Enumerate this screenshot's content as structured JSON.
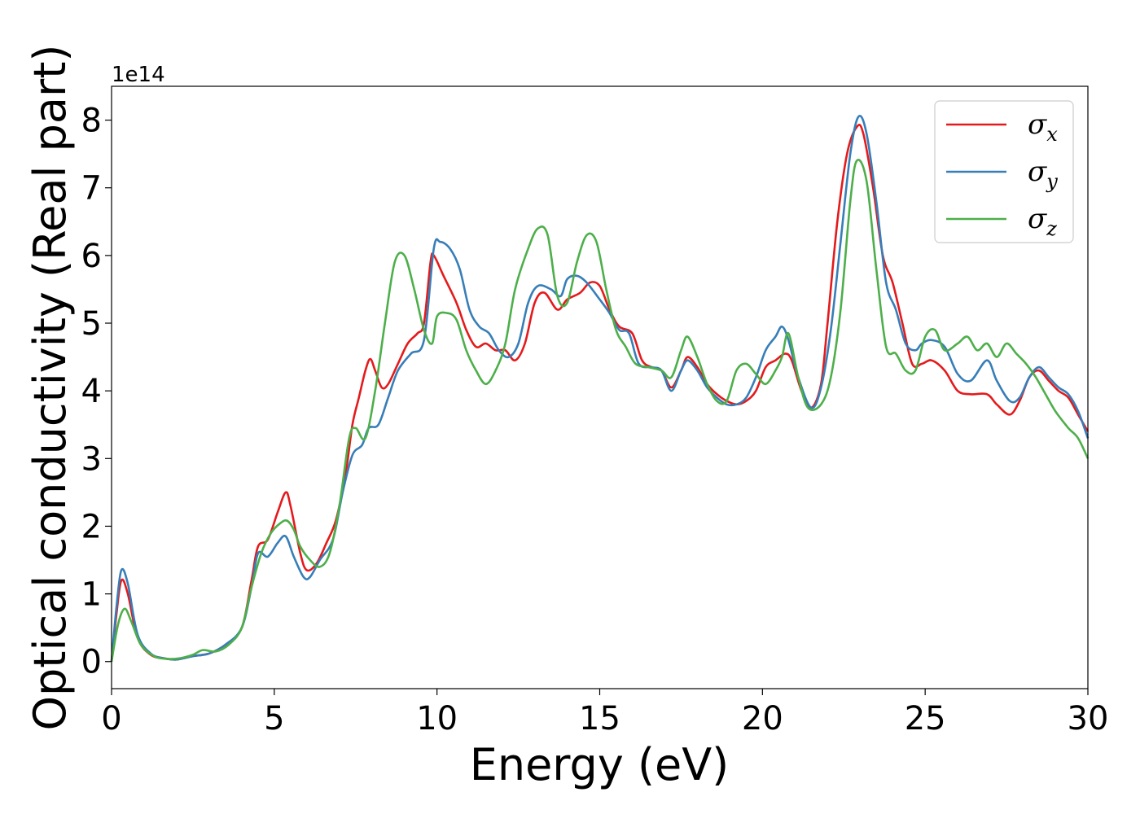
{
  "chart_data": {
    "type": "line",
    "xlabel": "Energy (eV)",
    "ylabel": "Optical conductivity (Real part)",
    "y_offset_label": "1e14",
    "xlim": [
      0,
      30
    ],
    "ylim": [
      -0.4,
      8.5
    ],
    "x_ticks": [
      0,
      5,
      10,
      15,
      20,
      25,
      30
    ],
    "y_ticks": [
      0,
      1,
      2,
      3,
      4,
      5,
      6,
      7,
      8
    ],
    "grid": false,
    "legend_position": "top-right",
    "series": [
      {
        "name": "σx",
        "legend_base": "σ",
        "legend_sub": "x",
        "color": "#e41a1c",
        "points": [
          [
            0,
            0
          ],
          [
            0.15,
            0.7
          ],
          [
            0.3,
            1.2
          ],
          [
            0.5,
            1.0
          ],
          [
            0.8,
            0.35
          ],
          [
            1.2,
            0.1
          ],
          [
            1.6,
            0.05
          ],
          [
            2.0,
            0.03
          ],
          [
            2.5,
            0.08
          ],
          [
            3.0,
            0.12
          ],
          [
            3.5,
            0.25
          ],
          [
            4.0,
            0.5
          ],
          [
            4.3,
            1.2
          ],
          [
            4.5,
            1.7
          ],
          [
            4.8,
            1.8
          ],
          [
            5.1,
            2.2
          ],
          [
            5.35,
            2.5
          ],
          [
            5.5,
            2.3
          ],
          [
            5.8,
            1.6
          ],
          [
            6.0,
            1.35
          ],
          [
            6.3,
            1.45
          ],
          [
            6.6,
            1.75
          ],
          [
            6.9,
            2.1
          ],
          [
            7.2,
            2.8
          ],
          [
            7.4,
            3.5
          ],
          [
            7.6,
            3.9
          ],
          [
            7.8,
            4.3
          ],
          [
            7.95,
            4.47
          ],
          [
            8.1,
            4.3
          ],
          [
            8.3,
            4.05
          ],
          [
            8.5,
            4.1
          ],
          [
            8.8,
            4.4
          ],
          [
            9.1,
            4.7
          ],
          [
            9.4,
            4.85
          ],
          [
            9.6,
            5.0
          ],
          [
            9.8,
            5.9
          ],
          [
            9.9,
            6.0
          ],
          [
            10.2,
            5.7
          ],
          [
            10.6,
            5.3
          ],
          [
            10.9,
            4.9
          ],
          [
            11.2,
            4.65
          ],
          [
            11.5,
            4.7
          ],
          [
            11.8,
            4.6
          ],
          [
            12.1,
            4.6
          ],
          [
            12.4,
            4.45
          ],
          [
            12.7,
            4.7
          ],
          [
            13.0,
            5.3
          ],
          [
            13.3,
            5.45
          ],
          [
            13.7,
            5.2
          ],
          [
            14.0,
            5.35
          ],
          [
            14.4,
            5.45
          ],
          [
            14.7,
            5.6
          ],
          [
            15.0,
            5.55
          ],
          [
            15.3,
            5.2
          ],
          [
            15.6,
            4.95
          ],
          [
            16.0,
            4.85
          ],
          [
            16.3,
            4.45
          ],
          [
            16.6,
            4.35
          ],
          [
            16.9,
            4.3
          ],
          [
            17.2,
            4.05
          ],
          [
            17.5,
            4.3
          ],
          [
            17.7,
            4.5
          ],
          [
            18.0,
            4.35
          ],
          [
            18.3,
            4.1
          ],
          [
            18.6,
            3.95
          ],
          [
            18.9,
            3.85
          ],
          [
            19.2,
            3.8
          ],
          [
            19.5,
            3.85
          ],
          [
            19.8,
            4.0
          ],
          [
            20.1,
            4.35
          ],
          [
            20.4,
            4.45
          ],
          [
            20.7,
            4.55
          ],
          [
            20.9,
            4.45
          ],
          [
            21.2,
            4.0
          ],
          [
            21.5,
            3.75
          ],
          [
            21.8,
            4.1
          ],
          [
            22.0,
            5.0
          ],
          [
            22.3,
            6.5
          ],
          [
            22.6,
            7.5
          ],
          [
            22.9,
            7.9
          ],
          [
            23.1,
            7.8
          ],
          [
            23.4,
            7.0
          ],
          [
            23.7,
            6.0
          ],
          [
            24.0,
            5.6
          ],
          [
            24.3,
            5.0
          ],
          [
            24.6,
            4.4
          ],
          [
            24.9,
            4.4
          ],
          [
            25.2,
            4.45
          ],
          [
            25.6,
            4.3
          ],
          [
            26.0,
            4.0
          ],
          [
            26.4,
            3.95
          ],
          [
            26.9,
            3.95
          ],
          [
            27.2,
            3.8
          ],
          [
            27.6,
            3.65
          ],
          [
            27.9,
            3.85
          ],
          [
            28.2,
            4.2
          ],
          [
            28.5,
            4.3
          ],
          [
            28.8,
            4.15
          ],
          [
            29.1,
            4.0
          ],
          [
            29.4,
            3.9
          ],
          [
            29.7,
            3.65
          ],
          [
            30.0,
            3.4
          ]
        ]
      },
      {
        "name": "σy",
        "legend_base": "σ",
        "legend_sub": "y",
        "color": "#377eb8",
        "points": [
          [
            0,
            0
          ],
          [
            0.15,
            0.8
          ],
          [
            0.3,
            1.35
          ],
          [
            0.5,
            1.15
          ],
          [
            0.8,
            0.4
          ],
          [
            1.2,
            0.12
          ],
          [
            1.6,
            0.05
          ],
          [
            2.0,
            0.03
          ],
          [
            2.5,
            0.08
          ],
          [
            3.0,
            0.12
          ],
          [
            3.5,
            0.25
          ],
          [
            4.0,
            0.5
          ],
          [
            4.3,
            1.1
          ],
          [
            4.5,
            1.6
          ],
          [
            4.8,
            1.55
          ],
          [
            5.1,
            1.75
          ],
          [
            5.35,
            1.85
          ],
          [
            5.6,
            1.55
          ],
          [
            5.9,
            1.25
          ],
          [
            6.1,
            1.25
          ],
          [
            6.4,
            1.5
          ],
          [
            6.8,
            1.8
          ],
          [
            7.1,
            2.5
          ],
          [
            7.4,
            3.05
          ],
          [
            7.7,
            3.2
          ],
          [
            7.9,
            3.45
          ],
          [
            8.2,
            3.5
          ],
          [
            8.5,
            3.9
          ],
          [
            8.8,
            4.3
          ],
          [
            9.2,
            4.55
          ],
          [
            9.6,
            4.75
          ],
          [
            9.9,
            6.1
          ],
          [
            10.1,
            6.2
          ],
          [
            10.4,
            6.1
          ],
          [
            10.7,
            5.8
          ],
          [
            11.0,
            5.2
          ],
          [
            11.3,
            4.95
          ],
          [
            11.6,
            4.85
          ],
          [
            11.9,
            4.6
          ],
          [
            12.2,
            4.5
          ],
          [
            12.5,
            4.7
          ],
          [
            12.8,
            5.3
          ],
          [
            13.1,
            5.55
          ],
          [
            13.5,
            5.5
          ],
          [
            13.8,
            5.4
          ],
          [
            14.0,
            5.65
          ],
          [
            14.3,
            5.7
          ],
          [
            14.6,
            5.6
          ],
          [
            15.0,
            5.35
          ],
          [
            15.3,
            5.15
          ],
          [
            15.6,
            4.9
          ],
          [
            15.9,
            4.85
          ],
          [
            16.2,
            4.4
          ],
          [
            16.6,
            4.35
          ],
          [
            16.9,
            4.3
          ],
          [
            17.2,
            4.0
          ],
          [
            17.5,
            4.3
          ],
          [
            17.7,
            4.45
          ],
          [
            18.0,
            4.3
          ],
          [
            18.3,
            4.05
          ],
          [
            18.6,
            3.9
          ],
          [
            18.9,
            3.8
          ],
          [
            19.2,
            3.8
          ],
          [
            19.5,
            3.9
          ],
          [
            19.8,
            4.2
          ],
          [
            20.1,
            4.6
          ],
          [
            20.4,
            4.8
          ],
          [
            20.6,
            4.95
          ],
          [
            20.8,
            4.75
          ],
          [
            21.1,
            4.2
          ],
          [
            21.5,
            3.75
          ],
          [
            21.8,
            4.05
          ],
          [
            22.1,
            4.9
          ],
          [
            22.4,
            6.2
          ],
          [
            22.7,
            7.5
          ],
          [
            22.95,
            8.05
          ],
          [
            23.2,
            7.8
          ],
          [
            23.5,
            6.8
          ],
          [
            23.8,
            5.6
          ],
          [
            24.1,
            5.2
          ],
          [
            24.4,
            4.7
          ],
          [
            24.7,
            4.6
          ],
          [
            24.9,
            4.7
          ],
          [
            25.2,
            4.75
          ],
          [
            25.6,
            4.65
          ],
          [
            26.0,
            4.25
          ],
          [
            26.4,
            4.15
          ],
          [
            26.9,
            4.45
          ],
          [
            27.2,
            4.15
          ],
          [
            27.6,
            3.85
          ],
          [
            27.9,
            3.9
          ],
          [
            28.2,
            4.2
          ],
          [
            28.5,
            4.35
          ],
          [
            28.8,
            4.2
          ],
          [
            29.1,
            4.05
          ],
          [
            29.4,
            3.95
          ],
          [
            29.7,
            3.7
          ],
          [
            30.0,
            3.3
          ]
        ]
      },
      {
        "name": "σz",
        "legend_base": "σ",
        "legend_sub": "z",
        "color": "#4daf4a",
        "points": [
          [
            0,
            0
          ],
          [
            0.2,
            0.55
          ],
          [
            0.4,
            0.78
          ],
          [
            0.6,
            0.6
          ],
          [
            0.9,
            0.25
          ],
          [
            1.3,
            0.08
          ],
          [
            1.7,
            0.04
          ],
          [
            2.1,
            0.05
          ],
          [
            2.5,
            0.1
          ],
          [
            2.8,
            0.17
          ],
          [
            3.2,
            0.15
          ],
          [
            3.6,
            0.25
          ],
          [
            4.0,
            0.5
          ],
          [
            4.3,
            1.1
          ],
          [
            4.6,
            1.6
          ],
          [
            4.9,
            1.9
          ],
          [
            5.2,
            2.05
          ],
          [
            5.4,
            2.08
          ],
          [
            5.6,
            1.95
          ],
          [
            5.8,
            1.7
          ],
          [
            6.1,
            1.5
          ],
          [
            6.4,
            1.4
          ],
          [
            6.7,
            1.6
          ],
          [
            7.0,
            2.3
          ],
          [
            7.3,
            3.3
          ],
          [
            7.5,
            3.45
          ],
          [
            7.8,
            3.3
          ],
          [
            8.1,
            4.0
          ],
          [
            8.4,
            5.0
          ],
          [
            8.7,
            5.9
          ],
          [
            9.0,
            6.0
          ],
          [
            9.3,
            5.5
          ],
          [
            9.6,
            4.9
          ],
          [
            9.85,
            4.7
          ],
          [
            10.0,
            5.1
          ],
          [
            10.3,
            5.15
          ],
          [
            10.6,
            5.05
          ],
          [
            10.9,
            4.6
          ],
          [
            11.2,
            4.3
          ],
          [
            11.5,
            4.1
          ],
          [
            11.8,
            4.3
          ],
          [
            12.1,
            4.7
          ],
          [
            12.4,
            5.5
          ],
          [
            12.8,
            6.1
          ],
          [
            13.1,
            6.4
          ],
          [
            13.4,
            6.3
          ],
          [
            13.7,
            5.4
          ],
          [
            14.0,
            5.3
          ],
          [
            14.3,
            5.9
          ],
          [
            14.6,
            6.3
          ],
          [
            14.9,
            6.2
          ],
          [
            15.2,
            5.5
          ],
          [
            15.5,
            4.9
          ],
          [
            15.8,
            4.65
          ],
          [
            16.1,
            4.4
          ],
          [
            16.5,
            4.35
          ],
          [
            16.9,
            4.3
          ],
          [
            17.2,
            4.2
          ],
          [
            17.5,
            4.6
          ],
          [
            17.7,
            4.8
          ],
          [
            18.0,
            4.5
          ],
          [
            18.3,
            4.1
          ],
          [
            18.6,
            3.85
          ],
          [
            18.9,
            3.85
          ],
          [
            19.2,
            4.3
          ],
          [
            19.5,
            4.4
          ],
          [
            19.8,
            4.25
          ],
          [
            20.1,
            4.1
          ],
          [
            20.4,
            4.3
          ],
          [
            20.6,
            4.5
          ],
          [
            20.8,
            4.85
          ],
          [
            21.1,
            4.2
          ],
          [
            21.4,
            3.75
          ],
          [
            21.8,
            3.8
          ],
          [
            22.1,
            4.2
          ],
          [
            22.4,
            5.2
          ],
          [
            22.7,
            6.8
          ],
          [
            22.9,
            7.4
          ],
          [
            23.2,
            7.1
          ],
          [
            23.5,
            5.8
          ],
          [
            23.8,
            4.65
          ],
          [
            24.1,
            4.55
          ],
          [
            24.4,
            4.3
          ],
          [
            24.7,
            4.3
          ],
          [
            25.0,
            4.8
          ],
          [
            25.3,
            4.9
          ],
          [
            25.6,
            4.6
          ],
          [
            26.0,
            4.7
          ],
          [
            26.3,
            4.8
          ],
          [
            26.6,
            4.6
          ],
          [
            26.9,
            4.7
          ],
          [
            27.2,
            4.5
          ],
          [
            27.5,
            4.7
          ],
          [
            27.8,
            4.55
          ],
          [
            28.1,
            4.4
          ],
          [
            28.4,
            4.2
          ],
          [
            28.7,
            3.95
          ],
          [
            29.0,
            3.7
          ],
          [
            29.4,
            3.45
          ],
          [
            29.7,
            3.3
          ],
          [
            30.0,
            3.0
          ]
        ]
      }
    ]
  }
}
